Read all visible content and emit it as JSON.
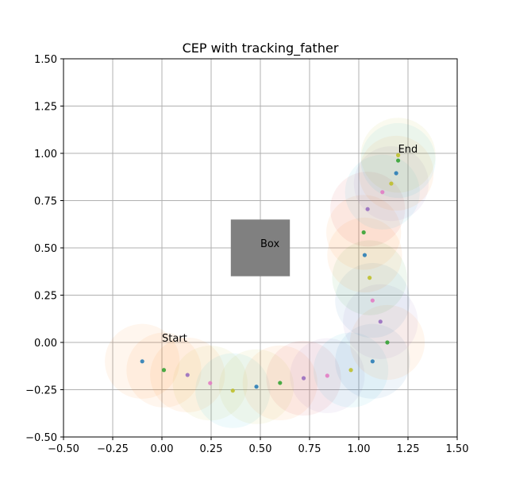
{
  "chart_data": {
    "type": "scatter",
    "title": "CEP with tracking_father",
    "xlabel": "",
    "ylabel": "",
    "xlim": [
      -0.5,
      1.5
    ],
    "ylim": [
      -0.5,
      1.5
    ],
    "grid": true,
    "x_ticks": [
      "−0.50",
      "−0.25",
      "0.00",
      "0.25",
      "0.50",
      "0.75",
      "1.00",
      "1.25",
      "1.50"
    ],
    "y_ticks": [
      "−0.50",
      "−0.25",
      "0.00",
      "0.25",
      "0.50",
      "0.75",
      "1.00",
      "1.25",
      "1.50"
    ],
    "box": {
      "label": "Box",
      "x0": 0.35,
      "x1": 0.65,
      "y0": 0.35,
      "y1": 0.65,
      "color": "#808080",
      "label_x": 0.5,
      "label_y": 0.5
    },
    "annotations": [
      {
        "text": "Start",
        "x": 0.0,
        "y": 0.0
      },
      {
        "text": "End",
        "x": 1.2,
        "y": 1.0
      }
    ],
    "circle_radius": 0.19,
    "palette": [
      "#1f77b4",
      "#2ca02c",
      "#9467bd",
      "#e377c2",
      "#bcbd22",
      "#17becf",
      "#ff7f0e"
    ],
    "points": [
      {
        "x": -0.1,
        "y": -0.1,
        "color": "#1f77b4",
        "circle": "#ff7f0e"
      },
      {
        "x": 0.01,
        "y": -0.146,
        "color": "#2ca02c",
        "circle": "#ff7f0e"
      },
      {
        "x": 0.13,
        "y": -0.172,
        "color": "#9467bd",
        "circle": "#ff7f0e"
      },
      {
        "x": 0.245,
        "y": -0.215,
        "color": "#e377c2",
        "circle": "#bcbd22"
      },
      {
        "x": 0.36,
        "y": -0.255,
        "color": "#bcbd22",
        "circle": "#17becf"
      },
      {
        "x": 0.48,
        "y": -0.234,
        "color": "#1f77b4",
        "circle": "#bcbd22"
      },
      {
        "x": 0.6,
        "y": -0.214,
        "color": "#2ca02c",
        "circle": "#ff7f0e"
      },
      {
        "x": 0.72,
        "y": -0.189,
        "color": "#9467bd",
        "circle": "#d62728"
      },
      {
        "x": 0.84,
        "y": -0.176,
        "color": "#e377c2",
        "circle": "#9467bd"
      },
      {
        "x": 0.96,
        "y": -0.146,
        "color": "#bcbd22",
        "circle": "#17becf"
      },
      {
        "x": 1.07,
        "y": -0.1,
        "color": "#1f77b4",
        "circle": "#1f77b4"
      },
      {
        "x": 1.145,
        "y": 0.0,
        "color": "#2ca02c",
        "circle": "#ff7f0e"
      },
      {
        "x": 1.11,
        "y": 0.11,
        "color": "#9467bd",
        "circle": "#9467bd"
      },
      {
        "x": 1.07,
        "y": 0.222,
        "color": "#e377c2",
        "circle": "#1f77b4"
      },
      {
        "x": 1.055,
        "y": 0.342,
        "color": "#bcbd22",
        "circle": "#2ca02c"
      },
      {
        "x": 1.03,
        "y": 0.462,
        "color": "#1f77b4",
        "circle": "#ff7f0e"
      },
      {
        "x": 1.025,
        "y": 0.582,
        "color": "#2ca02c",
        "circle": "#ff7f0e"
      },
      {
        "x": 1.045,
        "y": 0.705,
        "color": "#9467bd",
        "circle": "#d62728"
      },
      {
        "x": 1.12,
        "y": 0.795,
        "color": "#e377c2",
        "circle": "#17becf"
      },
      {
        "x": 1.165,
        "y": 0.84,
        "color": "#bcbd22",
        "circle": "#9467bd"
      },
      {
        "x": 1.19,
        "y": 0.895,
        "color": "#1f77b4",
        "circle": "#ff7f0e"
      },
      {
        "x": 1.2,
        "y": 0.962,
        "color": "#2ca02c",
        "circle": "#17becf"
      },
      {
        "x": 1.2,
        "y": 0.99,
        "color": "#bcbd22",
        "circle": "#bcbd22"
      }
    ]
  }
}
